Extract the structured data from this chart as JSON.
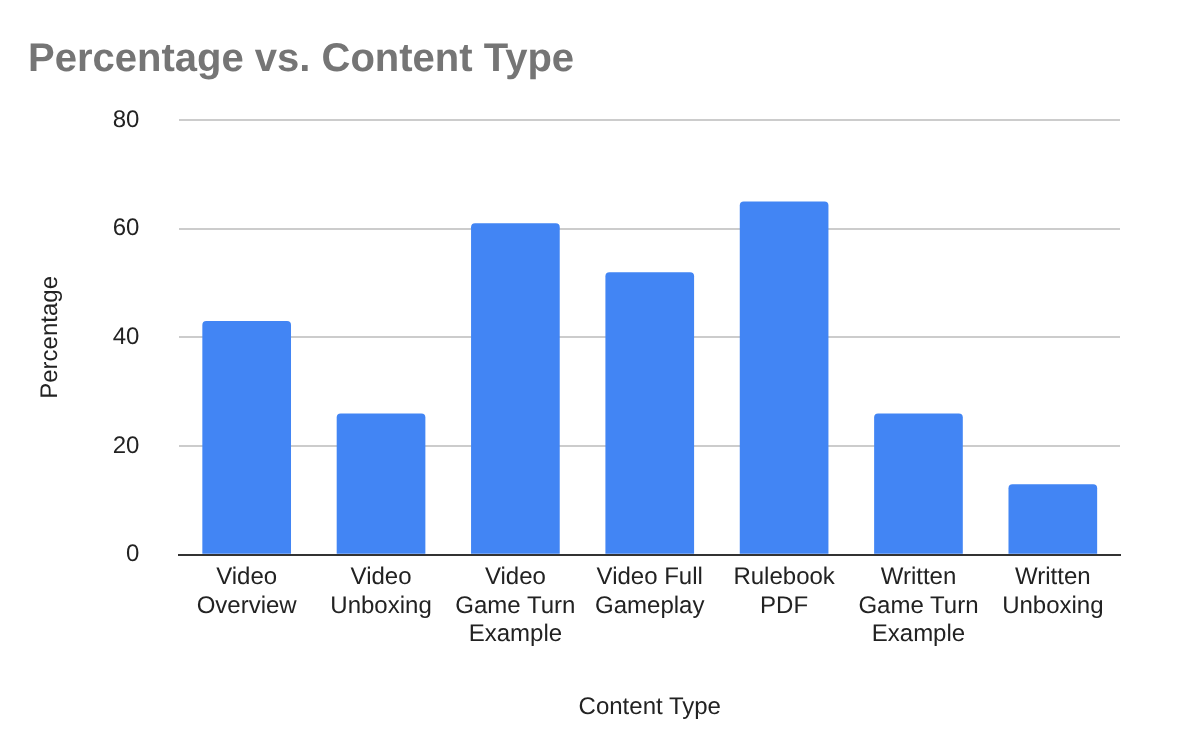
{
  "chart_data": {
    "type": "bar",
    "title": "Percentage vs. Content Type",
    "xlabel": "Content Type",
    "ylabel": "Percentage",
    "categories": [
      "Video Overview",
      "Video Unboxing",
      "Video Game Turn Example",
      "Video Full Gameplay",
      "Rulebook PDF",
      "Written Game Turn Example",
      "Written Unboxing"
    ],
    "values": [
      43,
      26,
      61,
      52,
      65,
      26,
      13
    ],
    "color": "#4285f4",
    "ylim": [
      0,
      80
    ],
    "yticks": [
      0,
      20,
      40,
      60,
      80
    ],
    "grid": "y",
    "legend": false
  }
}
